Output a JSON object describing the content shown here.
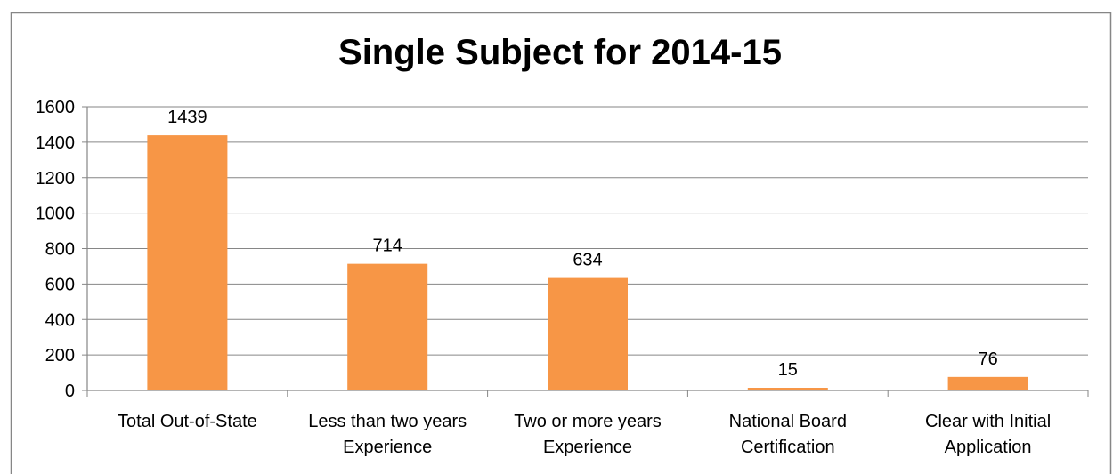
{
  "chart_data": {
    "type": "bar",
    "title": "Single Subject for 2014-15",
    "categories": [
      [
        "Total Out-of-State"
      ],
      [
        "Less than two years",
        "Experience"
      ],
      [
        "Two or more years",
        "Experience"
      ],
      [
        "National Board",
        "Certification"
      ],
      [
        "Clear with Initial",
        "Application"
      ]
    ],
    "values": [
      1439,
      714,
      634,
      15,
      76
    ],
    "data_labels": [
      "1439",
      "714",
      "634",
      "15",
      "76"
    ],
    "ylim": [
      0,
      1600
    ],
    "yticks": [
      "0",
      "200",
      "400",
      "600",
      "800",
      "1000",
      "1200",
      "1400",
      "1600"
    ],
    "grid": true,
    "legend": "none",
    "bar_color": "#F79646",
    "grid_color": "#868686",
    "xlabel": "",
    "ylabel": ""
  }
}
